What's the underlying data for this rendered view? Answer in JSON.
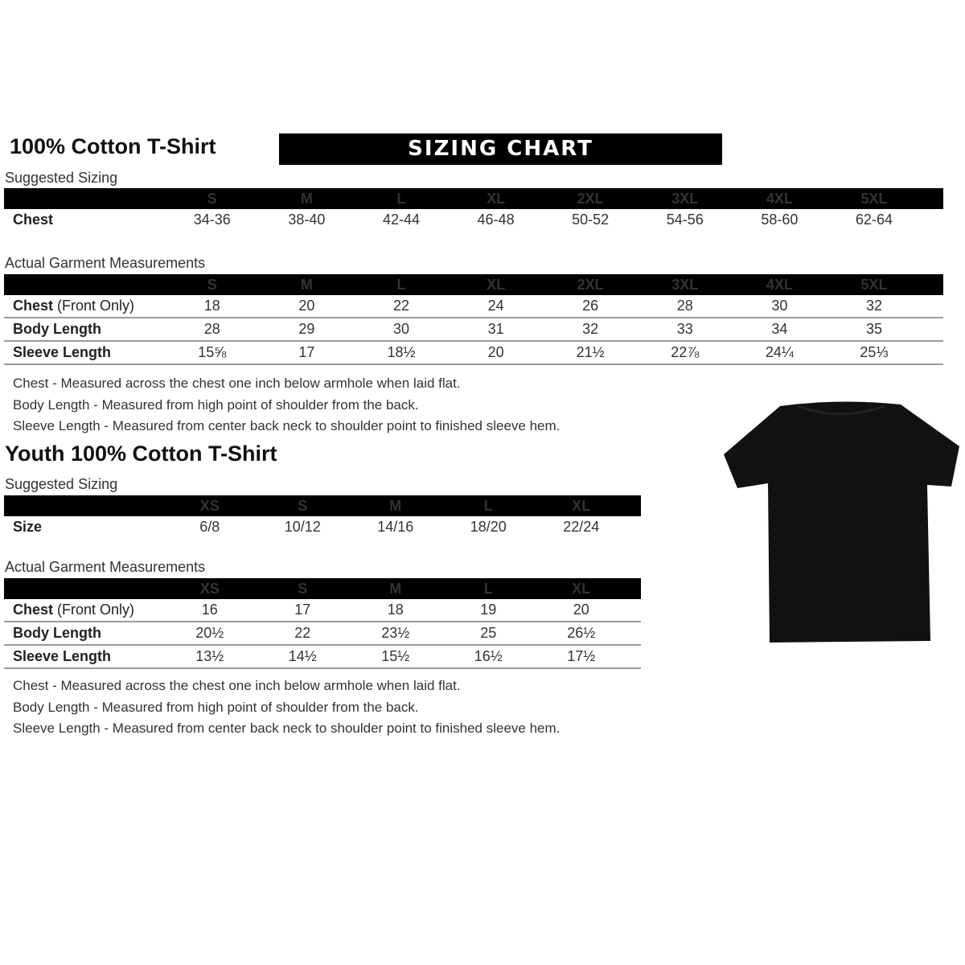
{
  "adult": {
    "title": "100% Cotton T-Shirt",
    "banner": "SIZING CHART",
    "suggested": {
      "label": "Suggested Sizing",
      "sizes": [
        "S",
        "M",
        "L",
        "XL",
        "2XL",
        "3XL",
        "4XL",
        "5XL"
      ],
      "rows": [
        {
          "label": "Chest",
          "sub": "",
          "values": [
            "34-36",
            "38-40",
            "42-44",
            "46-48",
            "50-52",
            "54-56",
            "58-60",
            "62-64"
          ]
        }
      ]
    },
    "actual": {
      "label": "Actual Garment Measurements",
      "sizes": [
        "S",
        "M",
        "L",
        "XL",
        "2XL",
        "3XL",
        "4XL",
        "5XL"
      ],
      "rows": [
        {
          "label": "Chest",
          "sub": " (Front Only)",
          "values": [
            "18",
            "20",
            "22",
            "24",
            "26",
            "28",
            "30",
            "32"
          ]
        },
        {
          "label": "Body Length",
          "sub": "",
          "values": [
            "28",
            "29",
            "30",
            "31",
            "32",
            "33",
            "34",
            "35"
          ]
        },
        {
          "label": "Sleeve Length",
          "sub": "",
          "values": [
            "15⅝",
            "17",
            "18½",
            "20",
            "21½",
            "22⅞",
            "24¼",
            "25⅓"
          ]
        }
      ]
    },
    "notes": [
      "Chest - Measured across the chest one inch below armhole when laid flat.",
      "Body Length - Measured from high point of shoulder from the back.",
      "Sleeve Length - Measured from center back neck to shoulder point to finished sleeve hem."
    ]
  },
  "youth": {
    "title": "Youth 100% Cotton T-Shirt",
    "suggested": {
      "label": "Suggested Sizing",
      "sizes": [
        "XS",
        "S",
        "M",
        "L",
        "XL"
      ],
      "rows": [
        {
          "label": "Size",
          "sub": "",
          "values": [
            "6/8",
            "10/12",
            "14/16",
            "18/20",
            "22/24"
          ]
        }
      ]
    },
    "actual": {
      "label": "Actual Garment Measurements",
      "sizes": [
        "XS",
        "S",
        "M",
        "L",
        "XL"
      ],
      "rows": [
        {
          "label": "Chest",
          "sub": " (Front Only)",
          "values": [
            "16",
            "17",
            "18",
            "19",
            "20"
          ]
        },
        {
          "label": "Body Length",
          "sub": "",
          "values": [
            "20½",
            "22",
            "23½",
            "25",
            "26½"
          ]
        },
        {
          "label": "Sleeve Length",
          "sub": "",
          "values": [
            "13½",
            "14½",
            "15½",
            "16½",
            "17½"
          ]
        }
      ]
    },
    "notes": [
      "Chest - Measured across the chest one inch below armhole when laid flat.",
      "Body Length - Measured from high point of shoulder from the back.",
      "Sleeve Length - Measured from center back neck to shoulder point to finished sleeve hem."
    ]
  },
  "image": {
    "icon": "t-shirt-icon",
    "color": "#111111"
  }
}
